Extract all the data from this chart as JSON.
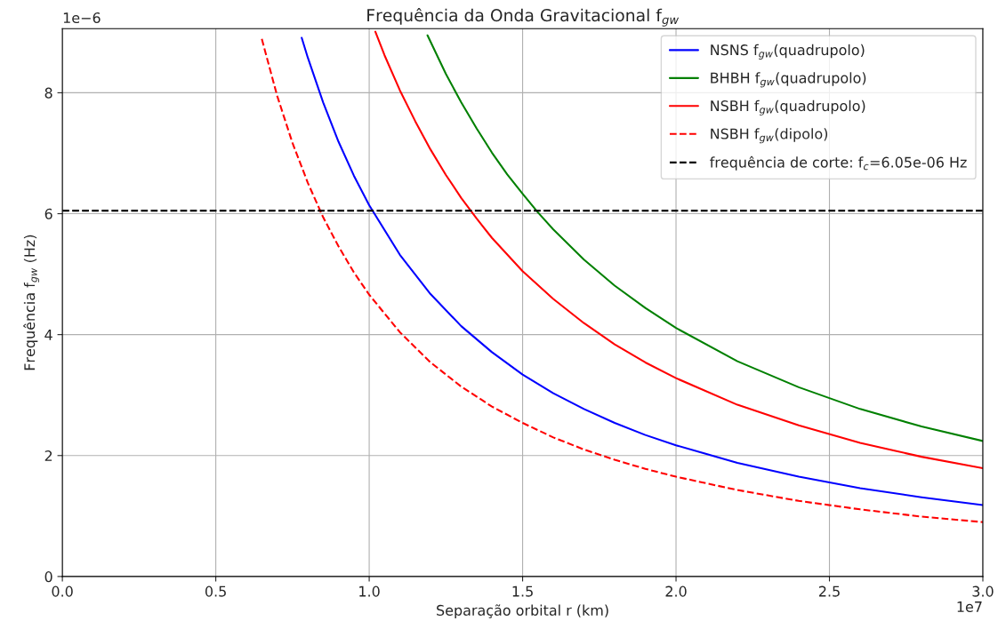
{
  "chart_data": {
    "type": "line",
    "title": "Frequência da Onda Gravitacional f$_{gw}$",
    "xlabel": "Separação orbital r (km)",
    "ylabel": "Frequência f$_{gw}$ (Hz)",
    "xlim": [
      0,
      3
    ],
    "ylim": [
      0,
      9.06
    ],
    "xticks": [
      {
        "value": 0,
        "label": "0.0"
      },
      0.5,
      {
        "value": 1,
        "label": "1.0"
      },
      1.5,
      {
        "value": 2,
        "label": "2.0"
      },
      2.5,
      {
        "value": 3,
        "label": "3.0"
      }
    ],
    "yticks": [
      0,
      2,
      4,
      6,
      8
    ],
    "annotations": [
      "1e−6",
      "1e7"
    ],
    "grid": true,
    "legend": "top right",
    "series": [
      {
        "name": "NSNS f$_{gw}$(quadrupolo)",
        "color": "#0000ff",
        "line_style": "solid",
        "x": [
          0.78,
          0.8,
          0.85,
          0.9,
          0.95,
          1.0,
          1.1,
          1.2,
          1.3,
          1.4,
          1.5,
          1.6,
          1.7,
          1.8,
          1.9,
          2.0,
          2.2,
          2.4,
          2.6,
          2.8,
          3.0
        ],
        "values": [
          8.91,
          8.58,
          7.84,
          7.19,
          6.63,
          6.14,
          5.32,
          4.67,
          4.14,
          3.71,
          3.34,
          3.03,
          2.77,
          2.54,
          2.34,
          2.17,
          1.88,
          1.65,
          1.46,
          1.31,
          1.18
        ]
      },
      {
        "name": "BHBH f$_{gw}$(quadrupolo)",
        "color": "#008000",
        "line_style": "solid",
        "x": [
          1.19,
          1.25,
          1.3,
          1.35,
          1.4,
          1.45,
          1.5,
          1.55,
          1.6,
          1.7,
          1.8,
          1.9,
          2.0,
          2.2,
          2.4,
          2.6,
          2.8,
          3.0
        ],
        "values": [
          8.95,
          8.31,
          7.84,
          7.41,
          7.01,
          6.65,
          6.33,
          6.02,
          5.74,
          5.24,
          4.81,
          4.44,
          4.11,
          3.56,
          3.13,
          2.77,
          2.48,
          2.24
        ]
      },
      {
        "name": "NSBH f$_{gw}$(quadrupolo)",
        "color": "#ff0000",
        "line_style": "solid",
        "x": [
          1.02,
          1.05,
          1.1,
          1.15,
          1.2,
          1.25,
          1.3,
          1.35,
          1.4,
          1.5,
          1.6,
          1.7,
          1.8,
          1.9,
          2.0,
          2.2,
          2.4,
          2.6,
          2.8,
          3.0
        ],
        "values": [
          9.01,
          8.62,
          8.04,
          7.53,
          7.06,
          6.64,
          6.26,
          5.92,
          5.6,
          5.05,
          4.59,
          4.19,
          3.84,
          3.54,
          3.28,
          2.84,
          2.5,
          2.21,
          1.98,
          1.79
        ]
      },
      {
        "name": "NSBH f$_{gw}$(dipolo)",
        "color": "#ff0000",
        "line_style": "dashed",
        "x": [
          0.65,
          0.7,
          0.75,
          0.8,
          0.85,
          0.9,
          0.95,
          1.0,
          1.1,
          1.2,
          1.3,
          1.4,
          1.5,
          1.6,
          1.7,
          1.8,
          1.9,
          2.0,
          2.2,
          2.4,
          2.6,
          2.8,
          3.0
        ],
        "values": [
          8.89,
          7.95,
          7.17,
          6.51,
          5.94,
          5.46,
          5.03,
          4.66,
          4.04,
          3.54,
          3.14,
          2.81,
          2.54,
          2.3,
          2.1,
          1.93,
          1.78,
          1.65,
          1.43,
          1.25,
          1.11,
          0.99,
          0.9
        ]
      }
    ],
    "ref_lines": [
      {
        "axis": "y",
        "value": 6.05,
        "label": "frequência de corte: f$_{c}$=6.05e-06 Hz",
        "color": "#000000",
        "line_style": "dashed"
      }
    ]
  }
}
